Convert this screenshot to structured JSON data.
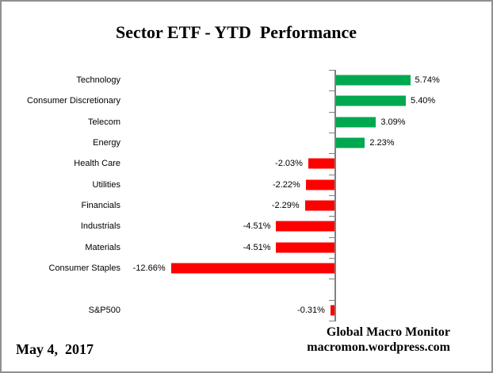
{
  "title": "Sector ETF - YTD  Performance",
  "footer": {
    "date": "May 4,  2017",
    "credit_line1": "Global Macro Monitor",
    "credit_line2": "macromon.wordpress.com"
  },
  "colors": {
    "positive_bar": "#00A84F",
    "negative_bar": "#FF0000",
    "axis": "#808080",
    "text": "#000000"
  },
  "chart_data": {
    "type": "bar",
    "orientation": "horizontal",
    "title": "Sector ETF - YTD  Performance",
    "xlabel": "",
    "ylabel": "",
    "value_format": "percent",
    "xlim": [
      -14,
      7
    ],
    "grid": false,
    "legend": false,
    "rows": [
      {
        "category": "Technology",
        "value": 5.74,
        "label": "5.74%"
      },
      {
        "category": "Consumer Discretionary",
        "value": 5.4,
        "label": "5.40%"
      },
      {
        "category": "Telecom",
        "value": 3.09,
        "label": "3.09%"
      },
      {
        "category": "Energy",
        "value": 2.23,
        "label": "2.23%"
      },
      {
        "category": "Health Care",
        "value": -2.03,
        "label": "-2.03%"
      },
      {
        "category": "Utilities",
        "value": -2.22,
        "label": "-2.22%"
      },
      {
        "category": "Financials",
        "value": -2.29,
        "label": "-2.29%"
      },
      {
        "category": "Industrials",
        "value": -4.51,
        "label": "-4.51%"
      },
      {
        "category": "Materials",
        "value": -4.51,
        "label": "-4.51%"
      },
      {
        "category": "Consumer Staples",
        "value": -12.66,
        "label": "-12.66%"
      },
      {
        "category": "",
        "value": null,
        "label": ""
      },
      {
        "category": "S&P500",
        "value": -0.31,
        "label": "-0.31%"
      }
    ]
  }
}
